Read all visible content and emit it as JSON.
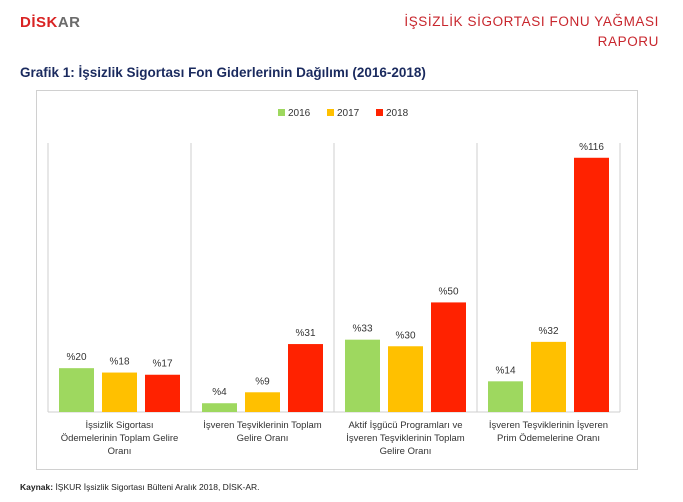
{
  "header": {
    "logo_part1": "DİSK",
    "logo_part2": "AR",
    "report_title_line1": "İŞSİZLİK SİGORTASI FONU YAĞMASI",
    "report_title_line2": "RAPORU"
  },
  "chart_heading": "Grafik 1: İşsizlik Sigortası Fon Giderlerinin Dağılımı (2016-2018)",
  "source": {
    "label": "Kaynak:",
    "text": " İŞKUR İşsizlik Sigortası Bülteni Aralık 2018, DİSK-AR."
  },
  "chart_data": {
    "type": "bar",
    "categories": [
      [
        "İşsizlik Sigortası",
        "Ödemelerinin Toplam Gelire",
        "Oranı"
      ],
      [
        "İşveren Teşviklerinin Toplam",
        "Gelire Oranı"
      ],
      [
        "Aktif İşgücü Programları ve",
        "İşveren Teşviklerinin Toplam",
        "Gelire Oranı"
      ],
      [
        "İşveren Teşviklerinin İşveren",
        "Prim Ödemelerine Oranı"
      ]
    ],
    "series": [
      {
        "name": "2016",
        "color": "#9ed85f",
        "values": [
          20,
          4,
          33,
          14
        ]
      },
      {
        "name": "2017",
        "color": "#ffc000",
        "values": [
          18,
          9,
          30,
          32
        ]
      },
      {
        "name": "2018",
        "color": "#ff2200",
        "values": [
          17,
          31,
          50,
          116
        ]
      }
    ],
    "value_prefix": "%",
    "ylim": [
      0,
      120
    ],
    "grid": false,
    "legend_position": "top-center"
  }
}
